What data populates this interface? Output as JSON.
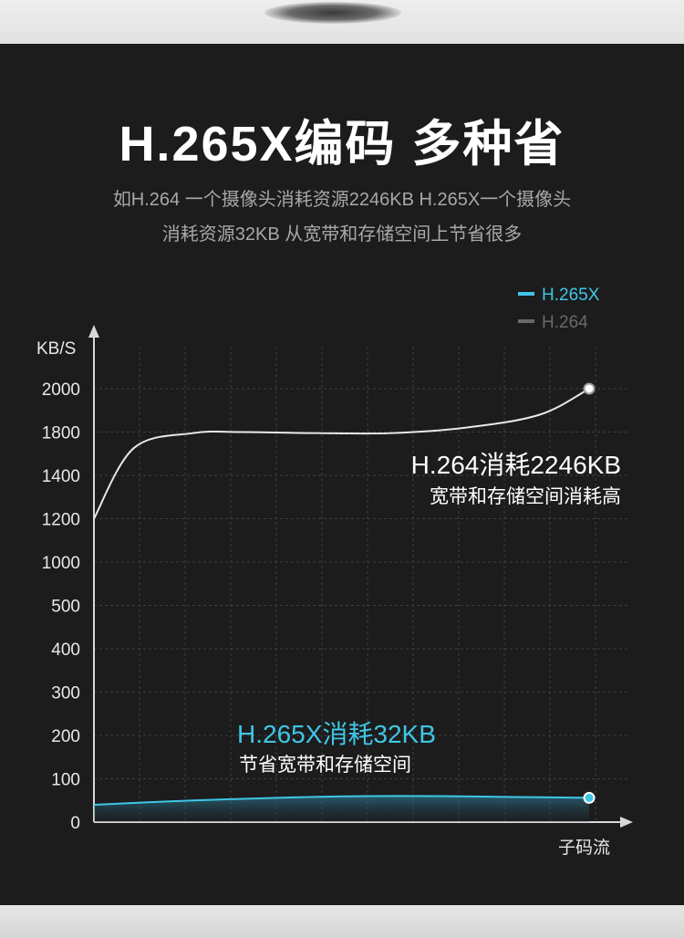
{
  "header": {
    "title": "H.265X编码 多种省",
    "subtitle_line1": "如H.264 一个摄像头消耗资源2246KB H.265X一个摄像头",
    "subtitle_line2": "消耗资源32KB 从宽带和存储空间上节省很多"
  },
  "chart_data": {
    "type": "line",
    "title": "",
    "ylabel": "KB/S",
    "xlabel": "子码流",
    "ylim_ticks": [
      "0",
      "100",
      "200",
      "300",
      "400",
      "500",
      "1000",
      "1200",
      "1400",
      "1800",
      "2000"
    ],
    "grid": true,
    "legend": {
      "placement": "top-right",
      "entries": [
        {
          "name": "H.265X",
          "color": "#3fc6e6"
        },
        {
          "name": "H.264",
          "color": "#6a6a6a"
        }
      ]
    },
    "series": [
      {
        "name": "H.264",
        "color": "#e9e9e9",
        "x": [
          0,
          0.08,
          0.2,
          0.3,
          0.45,
          0.6,
          0.75,
          0.9,
          1.0
        ],
        "y": [
          1200,
          1650,
          1790,
          1800,
          1790,
          1790,
          1820,
          1880,
          2000
        ]
      },
      {
        "name": "H.265X",
        "color": "#3fc6e6",
        "x": [
          0,
          0.2,
          0.4,
          0.55,
          0.7,
          0.85,
          1.0
        ],
        "y": [
          40,
          50,
          57,
          60,
          60,
          58,
          56
        ]
      }
    ],
    "annotations": [
      {
        "title": "H.264消耗2246KB",
        "text": "宽带和存储空间消耗高",
        "color": "#ffffff"
      },
      {
        "title": "H.265X消耗32KB",
        "text": "节省宽带和存储空间",
        "color": "#3fc6e6"
      }
    ]
  }
}
